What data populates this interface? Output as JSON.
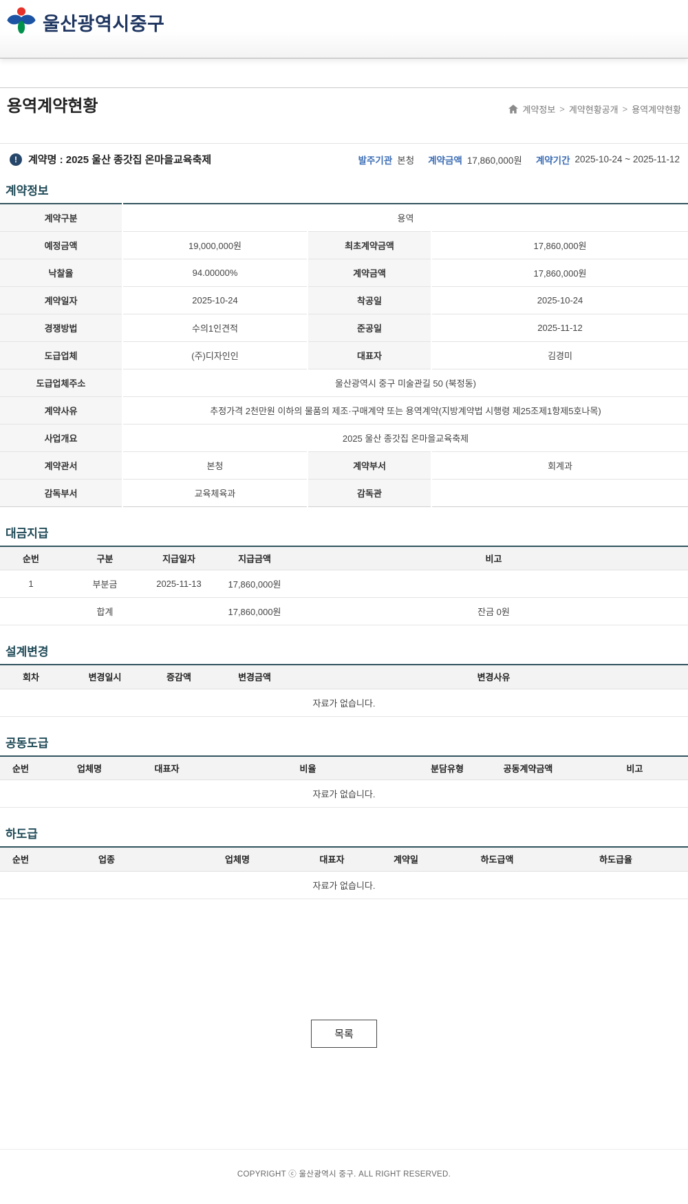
{
  "colors": {
    "logo_navy": "#1e3560",
    "section_title": "#1f4a57",
    "table_top_border": "#30535e",
    "label_blue": "#3d6eb5",
    "info_icon_bg": "#27476a",
    "logo_red": "#e63229",
    "logo_blue": "#1c54a3",
    "logo_green": "#00914b"
  },
  "header": {
    "logo_text": "울산광역시중구"
  },
  "page": {
    "title": "용역계약현황",
    "breadcrumb": {
      "separator": ">",
      "items": [
        "계약정보",
        "계약현황공개",
        "용역계약현황"
      ]
    }
  },
  "summary": {
    "name_label": "계약명 : 2025 울산 종갓집 온마을교육축제",
    "info_icon_glyph": "!",
    "items": [
      {
        "label": "발주기관",
        "value": "본청"
      },
      {
        "label": "계약금액",
        "value": "17,860,000원"
      },
      {
        "label": "계약기간",
        "value": "2025-10-24 ~ 2025-11-12"
      }
    ]
  },
  "contract_info": {
    "title": "계약정보",
    "rows": [
      {
        "type": "full",
        "label": "계약구분",
        "value": "용역"
      },
      {
        "type": "pair",
        "label1": "예정금액",
        "value1": "19,000,000원",
        "label2": "최초계약금액",
        "value2": "17,860,000원"
      },
      {
        "type": "pair",
        "label1": "낙찰율",
        "value1": "94.00000%",
        "label2": "계약금액",
        "value2": "17,860,000원"
      },
      {
        "type": "pair",
        "label1": "계약일자",
        "value1": "2025-10-24",
        "label2": "착공일",
        "value2": "2025-10-24"
      },
      {
        "type": "pair",
        "label1": "경쟁방법",
        "value1": "수의1인견적",
        "label2": "준공일",
        "value2": "2025-11-12"
      },
      {
        "type": "pair",
        "label1": "도급업체",
        "value1": "(주)디자인인",
        "label2": "대표자",
        "value2": "김경미"
      },
      {
        "type": "full",
        "label": "도급업체주소",
        "value": "울산광역시 중구 미술관길 50 (북정동)"
      },
      {
        "type": "full",
        "label": "계약사유",
        "value": "추정가격 2천만원 이하의 물품의 제조·구매계약 또는 용역계약(지방계약법 시행령 제25조제1항제5호나목)"
      },
      {
        "type": "full",
        "label": "사업개요",
        "value": "2025 울산 종갓집 온마을교육축제"
      },
      {
        "type": "pair",
        "label1": "계약관서",
        "value1": "본청",
        "label2": "계약부서",
        "value2": "회계과"
      },
      {
        "type": "pair",
        "label1": "감독부서",
        "value1": "교육체육과",
        "label2": "감독관",
        "value2": ""
      }
    ]
  },
  "payment": {
    "title": "대금지급",
    "headers": [
      "순번",
      "구분",
      "지급일자",
      "지급금액",
      "비고"
    ],
    "rows": [
      [
        "1",
        "부분금",
        "2025-11-13",
        "17,860,000원",
        ""
      ]
    ],
    "total_row": [
      "",
      "합계",
      "",
      "17,860,000원",
      "잔금 0원"
    ]
  },
  "design_change": {
    "title": "설계변경",
    "headers": [
      "회차",
      "변경일시",
      "증감액",
      "변경금액",
      "변경사유"
    ],
    "empty_text": "자료가 없습니다."
  },
  "joint_contract": {
    "title": "공동도급",
    "headers": [
      "순번",
      "업체명",
      "대표자",
      "비율",
      "분담유형",
      "공동계약금액",
      "비고"
    ],
    "empty_text": "자료가 없습니다."
  },
  "subcontract": {
    "title": "하도급",
    "headers": [
      "순번",
      "업종",
      "업체명",
      "대표자",
      "계약일",
      "하도급액",
      "하도급율"
    ],
    "empty_text": "자료가 없습니다."
  },
  "list_button_label": "목록",
  "footer": {
    "copyright": "COPYRIGHT ⓒ 울산광역시 중구. ALL RIGHT RESERVED."
  }
}
